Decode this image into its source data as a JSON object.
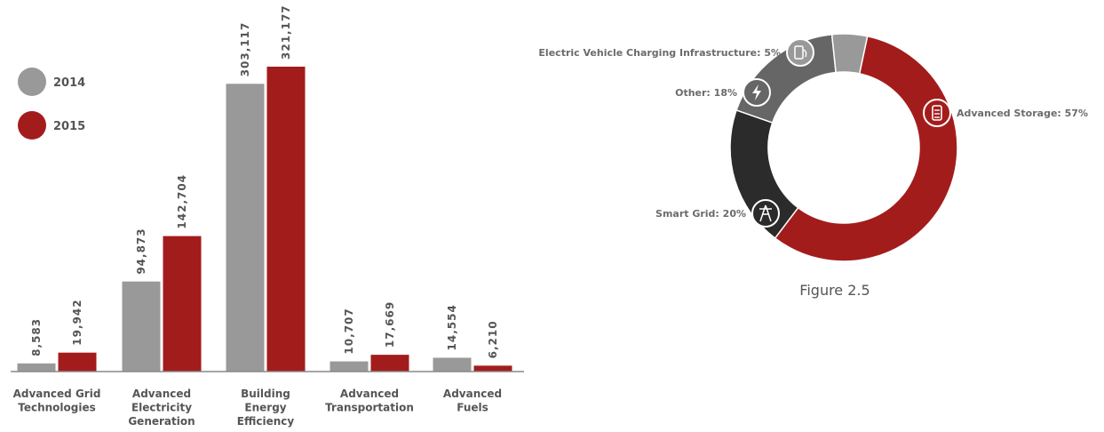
{
  "chart_data": [
    {
      "type": "bar",
      "categories": [
        [
          "Advanced Grid",
          "Technologies"
        ],
        [
          "Advanced",
          "Electricity",
          "Generation"
        ],
        [
          "Building",
          "Energy",
          "Efficiency"
        ],
        [
          "Advanced",
          "Transportation"
        ],
        [
          "Advanced",
          "Fuels"
        ]
      ],
      "series": [
        {
          "name": "2014",
          "color": "#999999",
          "values": [
            8583,
            94873,
            303117,
            10707,
            14554
          ],
          "labels": [
            "8,583",
            "94,873",
            "303,117",
            "10,707",
            "14,554"
          ]
        },
        {
          "name": "2015",
          "color": "#a31c1c",
          "values": [
            19942,
            142704,
            321177,
            17669,
            6210
          ],
          "labels": [
            "19,942",
            "142,704",
            "321,177",
            "17,669",
            "6,210"
          ]
        }
      ],
      "ylim": [
        0,
        321177
      ],
      "legend_position": "top-left",
      "grid": false
    },
    {
      "type": "pie",
      "style": "donut",
      "caption": "Figure 2.5",
      "slices": [
        {
          "label": "Advanced Storage: 57%",
          "value": 57,
          "color": "#a31c1c",
          "icon": "battery-icon"
        },
        {
          "label": "Smart Grid: 20%",
          "value": 20,
          "color": "#2b2b2b",
          "icon": "transmission-tower-icon"
        },
        {
          "label": "Other: 18%",
          "value": 18,
          "color": "#666666",
          "icon": "lightning-icon"
        },
        {
          "label": "Electric Vehicle Charging Infrastructure: 5%",
          "value": 5,
          "color": "#999999",
          "icon": "ev-charger-icon"
        }
      ]
    }
  ]
}
